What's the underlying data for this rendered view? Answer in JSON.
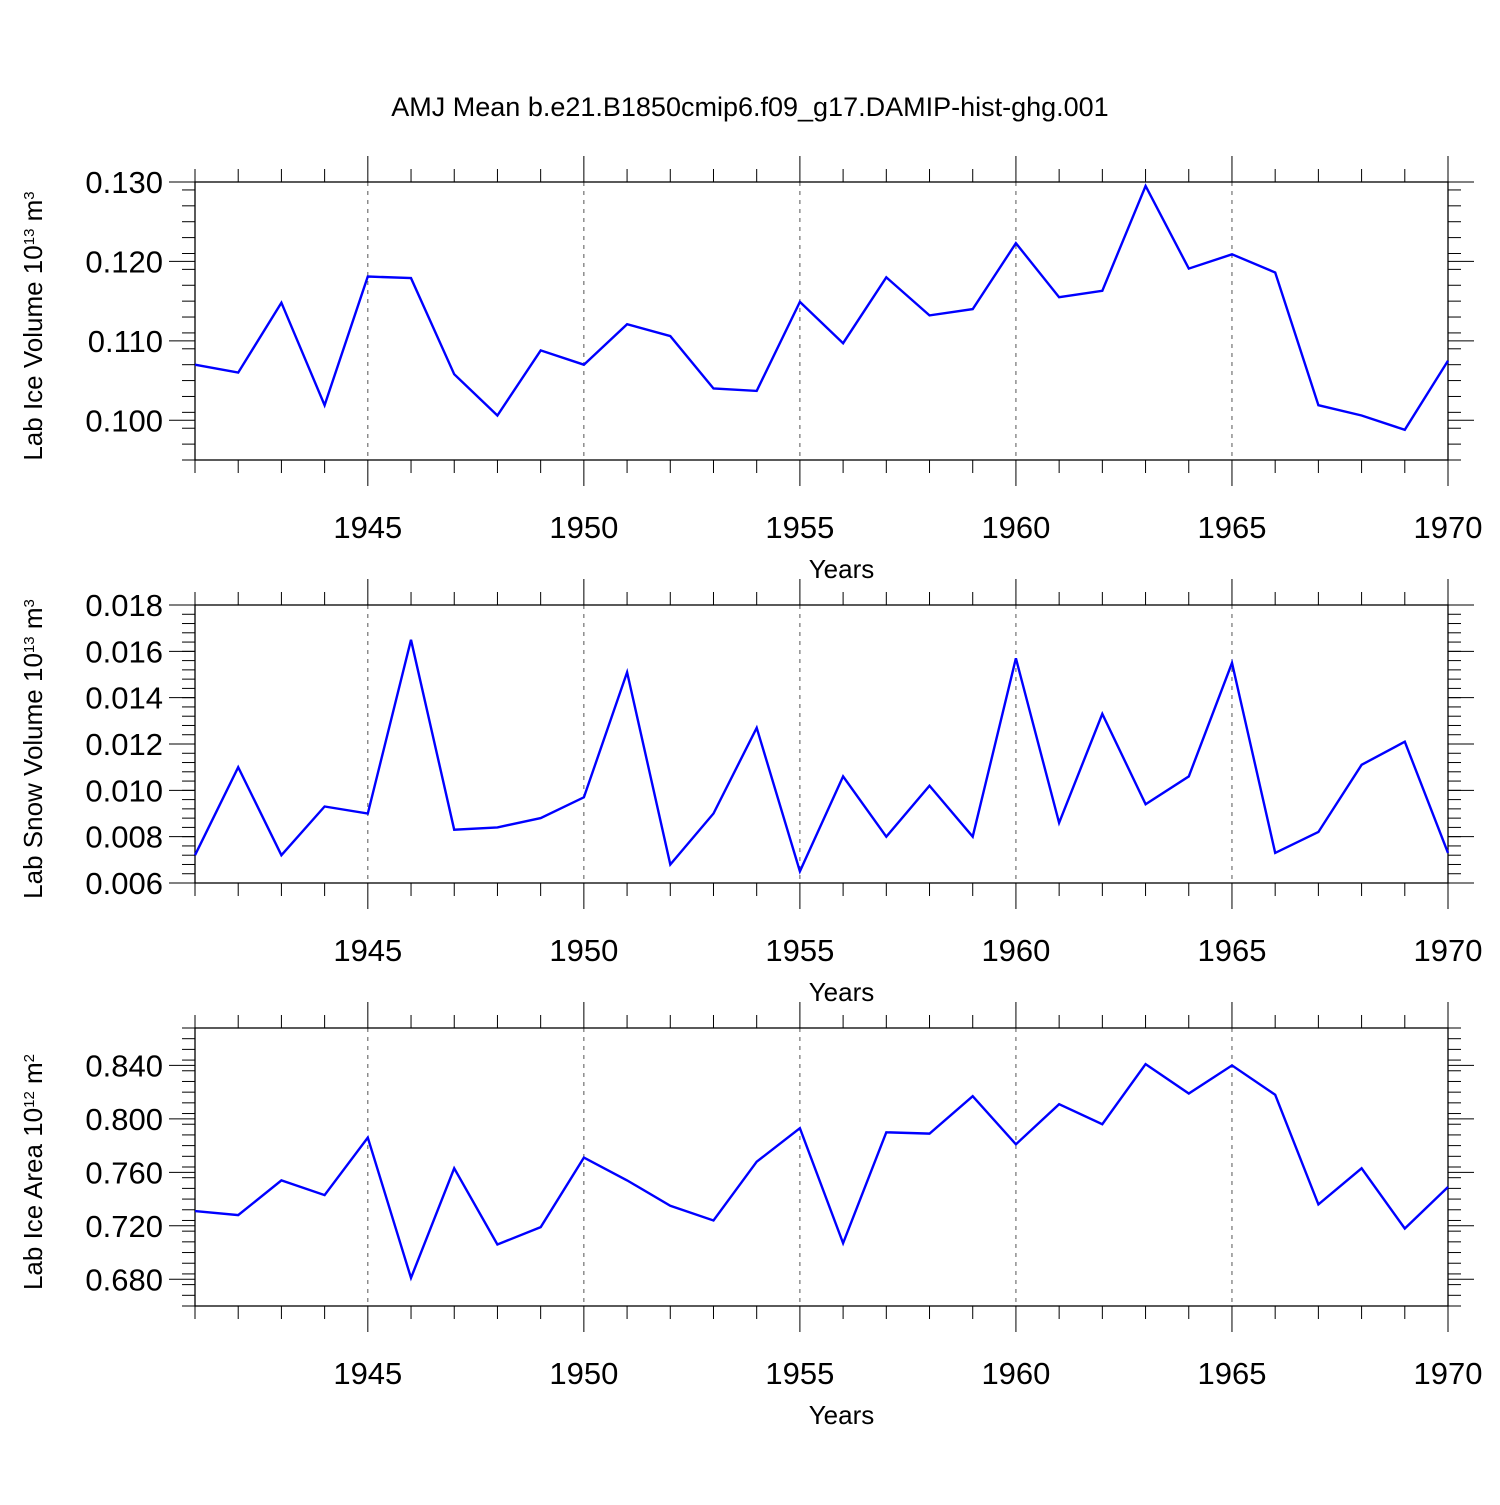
{
  "title": "AMJ Mean b.e21.B1850cmip6.f09_g17.DAMIP-hist-ghg.001",
  "colors": {
    "line": "#0000ff",
    "axis": "#000000",
    "grid": "#555555",
    "background": "#ffffff"
  },
  "chart_data": [
    {
      "type": "line",
      "ylabel_main": "Lab Ice Volume 10",
      "ylabel_exp": "13",
      "ylabel_unit": " m",
      "ylabel_unit_exp": "3",
      "xlabel": "Years",
      "xlim": [
        1941,
        1970
      ],
      "ylim": [
        0.095,
        0.13
      ],
      "yticks": [
        0.1,
        0.11,
        0.12,
        0.13
      ],
      "ytick_labels": [
        "0.100",
        "0.110",
        "0.120",
        "0.130"
      ],
      "yminor_step": 0.002,
      "xticks": [
        1945,
        1950,
        1955,
        1960,
        1965,
        1970
      ],
      "xtick_labels": [
        "1945",
        "1950",
        "1955",
        "1960",
        "1965",
        "1970"
      ],
      "grid_x": [
        1945,
        1950,
        1955,
        1960,
        1965
      ],
      "x": [
        1941,
        1942,
        1943,
        1944,
        1945,
        1946,
        1947,
        1948,
        1949,
        1950,
        1951,
        1952,
        1953,
        1954,
        1955,
        1956,
        1957,
        1958,
        1959,
        1960,
        1961,
        1962,
        1963,
        1964,
        1965,
        1966,
        1967,
        1968,
        1969,
        1970
      ],
      "series": [
        {
          "name": "Lab Ice Volume",
          "values": [
            0.107,
            0.106,
            0.1148,
            0.1019,
            0.1181,
            0.1179,
            0.1058,
            0.1006,
            0.1088,
            0.107,
            0.1121,
            0.1106,
            0.104,
            0.1037,
            0.1149,
            0.1097,
            0.118,
            0.1132,
            0.114,
            0.1223,
            0.1155,
            0.1163,
            0.1295,
            0.1191,
            0.1209,
            0.1186,
            0.1019,
            0.1006,
            0.0988,
            0.1075
          ]
        }
      ]
    },
    {
      "type": "line",
      "ylabel_main": "Lab Snow Volume 10",
      "ylabel_exp": "13",
      "ylabel_unit": " m",
      "ylabel_unit_exp": "3",
      "xlabel": "Years",
      "xlim": [
        1941,
        1970
      ],
      "ylim": [
        0.006,
        0.018
      ],
      "yticks": [
        0.006,
        0.008,
        0.01,
        0.012,
        0.014,
        0.016,
        0.018
      ],
      "ytick_labels": [
        "0.006",
        "0.008",
        "0.010",
        "0.012",
        "0.014",
        "0.016",
        "0.018"
      ],
      "yminor_step": 0.0004,
      "xticks": [
        1945,
        1950,
        1955,
        1960,
        1965,
        1970
      ],
      "xtick_labels": [
        "1945",
        "1950",
        "1955",
        "1960",
        "1965",
        "1970"
      ],
      "grid_x": [
        1945,
        1950,
        1955,
        1960,
        1965
      ],
      "x": [
        1941,
        1942,
        1943,
        1944,
        1945,
        1946,
        1947,
        1948,
        1949,
        1950,
        1951,
        1952,
        1953,
        1954,
        1955,
        1956,
        1957,
        1958,
        1959,
        1960,
        1961,
        1962,
        1963,
        1964,
        1965,
        1966,
        1967,
        1968,
        1969,
        1970
      ],
      "series": [
        {
          "name": "Lab Snow Volume",
          "values": [
            0.0072,
            0.011,
            0.0072,
            0.0093,
            0.009,
            0.0165,
            0.0083,
            0.0084,
            0.0088,
            0.0097,
            0.0151,
            0.0068,
            0.009,
            0.0127,
            0.0065,
            0.0106,
            0.008,
            0.0102,
            0.008,
            0.0157,
            0.0086,
            0.0133,
            0.0094,
            0.0106,
            0.0155,
            0.0073,
            0.0082,
            0.0111,
            0.0121,
            0.0073
          ]
        }
      ]
    },
    {
      "type": "line",
      "ylabel_main": "Lab Ice Area 10",
      "ylabel_exp": "12",
      "ylabel_unit": " m",
      "ylabel_unit_exp": "2",
      "xlabel": "Years",
      "xlim": [
        1941,
        1970
      ],
      "ylim": [
        0.66,
        0.868
      ],
      "yticks": [
        0.68,
        0.72,
        0.76,
        0.8,
        0.84
      ],
      "ytick_labels": [
        "0.680",
        "0.720",
        "0.760",
        "0.800",
        "0.840"
      ],
      "yminor_step": 0.008,
      "xticks": [
        1945,
        1950,
        1955,
        1960,
        1965,
        1970
      ],
      "xtick_labels": [
        "1945",
        "1950",
        "1955",
        "1960",
        "1965",
        "1970"
      ],
      "grid_x": [
        1945,
        1950,
        1955,
        1960,
        1965
      ],
      "x": [
        1941,
        1942,
        1943,
        1944,
        1945,
        1946,
        1947,
        1948,
        1949,
        1950,
        1951,
        1952,
        1953,
        1954,
        1955,
        1956,
        1957,
        1958,
        1959,
        1960,
        1961,
        1962,
        1963,
        1964,
        1965,
        1966,
        1967,
        1968,
        1969,
        1970
      ],
      "series": [
        {
          "name": "Lab Ice Area",
          "values": [
            0.731,
            0.728,
            0.754,
            0.743,
            0.786,
            0.681,
            0.763,
            0.706,
            0.719,
            0.771,
            0.754,
            0.735,
            0.724,
            0.768,
            0.793,
            0.707,
            0.79,
            0.789,
            0.817,
            0.781,
            0.811,
            0.796,
            0.841,
            0.819,
            0.84,
            0.818,
            0.736,
            0.763,
            0.718,
            0.749
          ]
        }
      ]
    }
  ]
}
